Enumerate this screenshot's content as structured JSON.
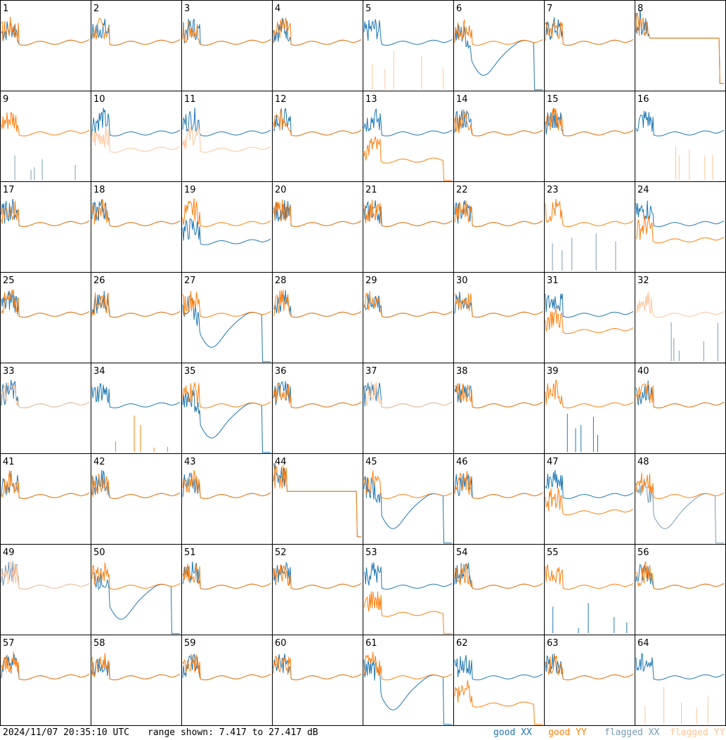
{
  "footer": {
    "timestamp": "2024/11/07 20:35:10 UTC",
    "range_text": "range shown: 7.417 to 27.417 dB"
  },
  "legend": [
    {
      "key": "good_xx",
      "label": "good XX",
      "color": "#1f77b4"
    },
    {
      "key": "good_yy",
      "label": "good YY",
      "color": "#ff7f0e"
    },
    {
      "key": "flagged_xx",
      "label": "flagged XX",
      "color": "#7a9bb5"
    },
    {
      "key": "flagged_yy",
      "label": "flagged YY",
      "color": "#ffc49a"
    }
  ],
  "chart_data": {
    "type": "line",
    "layout": "small-multiples 8x8",
    "title": "",
    "xlabel": "",
    "ylabel": "",
    "ylim": [
      7.417,
      27.417
    ],
    "units": "dB",
    "panels": [
      {
        "id": "1",
        "xx_state": "good",
        "yy_state": "good",
        "shape": "default"
      },
      {
        "id": "2",
        "xx_state": "good",
        "yy_state": "good",
        "shape": "default"
      },
      {
        "id": "3",
        "xx_state": "good",
        "yy_state": "good",
        "shape": "default"
      },
      {
        "id": "4",
        "xx_state": "good",
        "yy_state": "good",
        "shape": "default"
      },
      {
        "id": "5",
        "xx_state": "good",
        "yy_state": "flagged",
        "shape": "xx_only"
      },
      {
        "id": "6",
        "xx_state": "good",
        "yy_state": "good",
        "shape": "xx_dip"
      },
      {
        "id": "7",
        "xx_state": "good",
        "yy_state": "good",
        "shape": "default"
      },
      {
        "id": "8",
        "xx_state": "good",
        "yy_state": "good",
        "shape": "flat"
      },
      {
        "id": "9",
        "xx_state": "flagged",
        "yy_state": "good",
        "shape": "yy_only"
      },
      {
        "id": "10",
        "xx_state": "good",
        "yy_state": "flagged",
        "shape": "yy_low"
      },
      {
        "id": "11",
        "xx_state": "good",
        "yy_state": "flagged",
        "shape": "yy_low"
      },
      {
        "id": "12",
        "xx_state": "good",
        "yy_state": "good",
        "shape": "default"
      },
      {
        "id": "13",
        "xx_state": "good",
        "yy_state": "good",
        "shape": "yy_dip"
      },
      {
        "id": "14",
        "xx_state": "good",
        "yy_state": "good",
        "shape": "default"
      },
      {
        "id": "15",
        "xx_state": "good",
        "yy_state": "good",
        "shape": "default"
      },
      {
        "id": "16",
        "xx_state": "good",
        "yy_state": "flagged",
        "shape": "xx_only"
      },
      {
        "id": "17",
        "xx_state": "good",
        "yy_state": "good",
        "shape": "default"
      },
      {
        "id": "18",
        "xx_state": "good",
        "yy_state": "good",
        "shape": "default"
      },
      {
        "id": "19",
        "xx_state": "good",
        "yy_state": "good",
        "shape": "xx_low"
      },
      {
        "id": "20",
        "xx_state": "good",
        "yy_state": "good",
        "shape": "default"
      },
      {
        "id": "21",
        "xx_state": "good",
        "yy_state": "good",
        "shape": "default"
      },
      {
        "id": "22",
        "xx_state": "good",
        "yy_state": "good",
        "shape": "default"
      },
      {
        "id": "23",
        "xx_state": "flagged",
        "yy_state": "good",
        "shape": "yy_only"
      },
      {
        "id": "24",
        "xx_state": "good",
        "yy_state": "good",
        "shape": "yy_low"
      },
      {
        "id": "25",
        "xx_state": "good",
        "yy_state": "good",
        "shape": "default"
      },
      {
        "id": "26",
        "xx_state": "good",
        "yy_state": "good",
        "shape": "default"
      },
      {
        "id": "27",
        "xx_state": "good",
        "yy_state": "good",
        "shape": "xx_dip"
      },
      {
        "id": "28",
        "xx_state": "good",
        "yy_state": "good",
        "shape": "default"
      },
      {
        "id": "29",
        "xx_state": "good",
        "yy_state": "good",
        "shape": "default"
      },
      {
        "id": "30",
        "xx_state": "good",
        "yy_state": "good",
        "shape": "default"
      },
      {
        "id": "31",
        "xx_state": "good",
        "yy_state": "good",
        "shape": "yy_low"
      },
      {
        "id": "32",
        "xx_state": "flagged",
        "yy_state": "flagged",
        "shape": "yy_only"
      },
      {
        "id": "33",
        "xx_state": "good",
        "yy_state": "flagged",
        "shape": "default"
      },
      {
        "id": "34",
        "xx_state": "good",
        "yy_state": "good",
        "shape": "xx_only"
      },
      {
        "id": "35",
        "xx_state": "good",
        "yy_state": "good",
        "shape": "xx_dip"
      },
      {
        "id": "36",
        "xx_state": "good",
        "yy_state": "good",
        "shape": "default"
      },
      {
        "id": "37",
        "xx_state": "good",
        "yy_state": "flagged",
        "shape": "default"
      },
      {
        "id": "38",
        "xx_state": "good",
        "yy_state": "good",
        "shape": "default"
      },
      {
        "id": "39",
        "xx_state": "good",
        "yy_state": "good",
        "shape": "yy_only"
      },
      {
        "id": "40",
        "xx_state": "good",
        "yy_state": "good",
        "shape": "default"
      },
      {
        "id": "41",
        "xx_state": "good",
        "yy_state": "good",
        "shape": "default"
      },
      {
        "id": "42",
        "xx_state": "good",
        "yy_state": "good",
        "shape": "default"
      },
      {
        "id": "43",
        "xx_state": "good",
        "yy_state": "good",
        "shape": "default"
      },
      {
        "id": "44",
        "xx_state": "good",
        "yy_state": "good",
        "shape": "flat"
      },
      {
        "id": "45",
        "xx_state": "good",
        "yy_state": "good",
        "shape": "xx_dip"
      },
      {
        "id": "46",
        "xx_state": "good",
        "yy_state": "good",
        "shape": "default"
      },
      {
        "id": "47",
        "xx_state": "good",
        "yy_state": "good",
        "shape": "yy_low"
      },
      {
        "id": "48",
        "xx_state": "flagged",
        "yy_state": "good",
        "shape": "xx_dip"
      },
      {
        "id": "49",
        "xx_state": "flagged",
        "yy_state": "flagged",
        "shape": "default"
      },
      {
        "id": "50",
        "xx_state": "good",
        "yy_state": "good",
        "shape": "xx_dip"
      },
      {
        "id": "51",
        "xx_state": "good",
        "yy_state": "good",
        "shape": "default"
      },
      {
        "id": "52",
        "xx_state": "good",
        "yy_state": "good",
        "shape": "default"
      },
      {
        "id": "53",
        "xx_state": "good",
        "yy_state": "good",
        "shape": "yy_dip"
      },
      {
        "id": "54",
        "xx_state": "good",
        "yy_state": "good",
        "shape": "default"
      },
      {
        "id": "55",
        "xx_state": "good",
        "yy_state": "good",
        "shape": "yy_only"
      },
      {
        "id": "56",
        "xx_state": "good",
        "yy_state": "good",
        "shape": "default"
      },
      {
        "id": "57",
        "xx_state": "good",
        "yy_state": "good",
        "shape": "default"
      },
      {
        "id": "58",
        "xx_state": "good",
        "yy_state": "good",
        "shape": "default"
      },
      {
        "id": "59",
        "xx_state": "good",
        "yy_state": "good",
        "shape": "default"
      },
      {
        "id": "60",
        "xx_state": "good",
        "yy_state": "good",
        "shape": "default"
      },
      {
        "id": "61",
        "xx_state": "good",
        "yy_state": "good",
        "shape": "xx_dip"
      },
      {
        "id": "62",
        "xx_state": "good",
        "yy_state": "good",
        "shape": "yy_dip"
      },
      {
        "id": "63",
        "xx_state": "good",
        "yy_state": "good",
        "shape": "default"
      },
      {
        "id": "64",
        "xx_state": "good",
        "yy_state": "flagged",
        "shape": "xx_only"
      }
    ]
  }
}
